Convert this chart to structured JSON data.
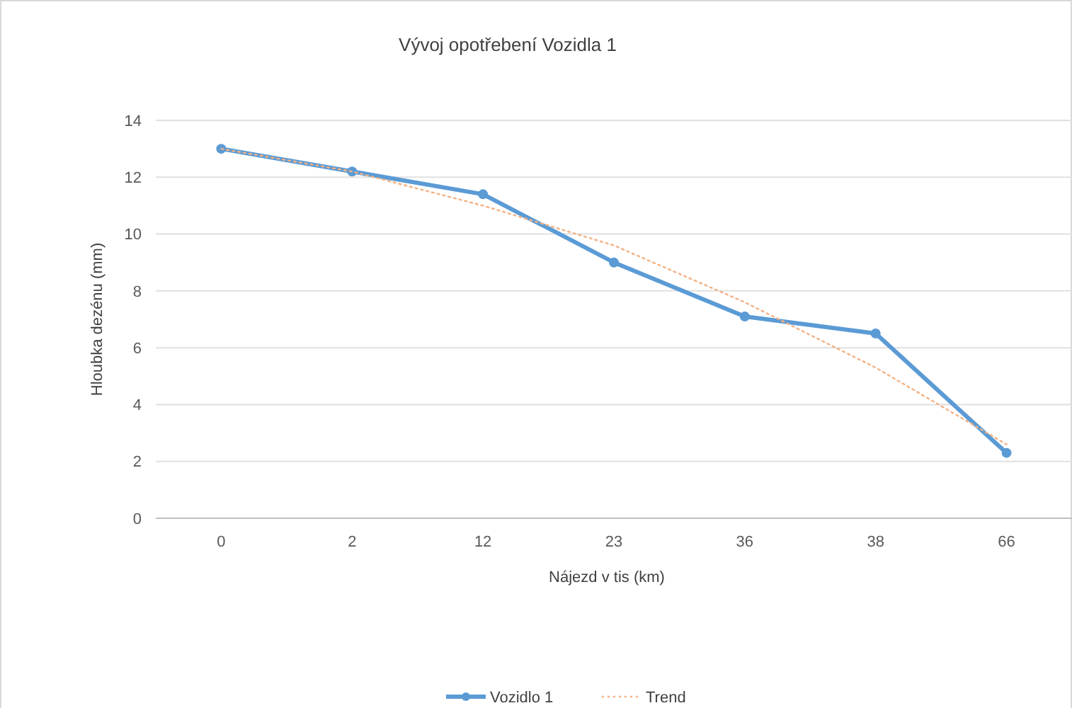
{
  "chart_data": {
    "type": "line",
    "title": "Vývoj opotřebení Vozidla 1",
    "xlabel": "Nájezd v tis (km)",
    "ylabel": "Hloubka dezénu (mm)",
    "categories": [
      "0",
      "2",
      "12",
      "23",
      "36",
      "38",
      "66"
    ],
    "series": [
      {
        "name": "Vozidlo 1",
        "color": "#5b9bd5",
        "values": [
          13,
          12.2,
          11.4,
          9.0,
          7.1,
          6.5,
          2.3
        ],
        "marker": "circle",
        "line_style": "solid"
      },
      {
        "name": "Trend",
        "color": "#f4b183",
        "values": [
          13.0,
          12.2,
          11.0,
          9.6,
          7.6,
          5.3,
          2.6
        ],
        "marker": "none",
        "line_style": "dotted"
      }
    ],
    "ylim": [
      0,
      14
    ],
    "yticks": [
      0,
      2,
      4,
      6,
      8,
      10,
      12,
      14
    ],
    "grid": "y",
    "legend": "bottom"
  }
}
